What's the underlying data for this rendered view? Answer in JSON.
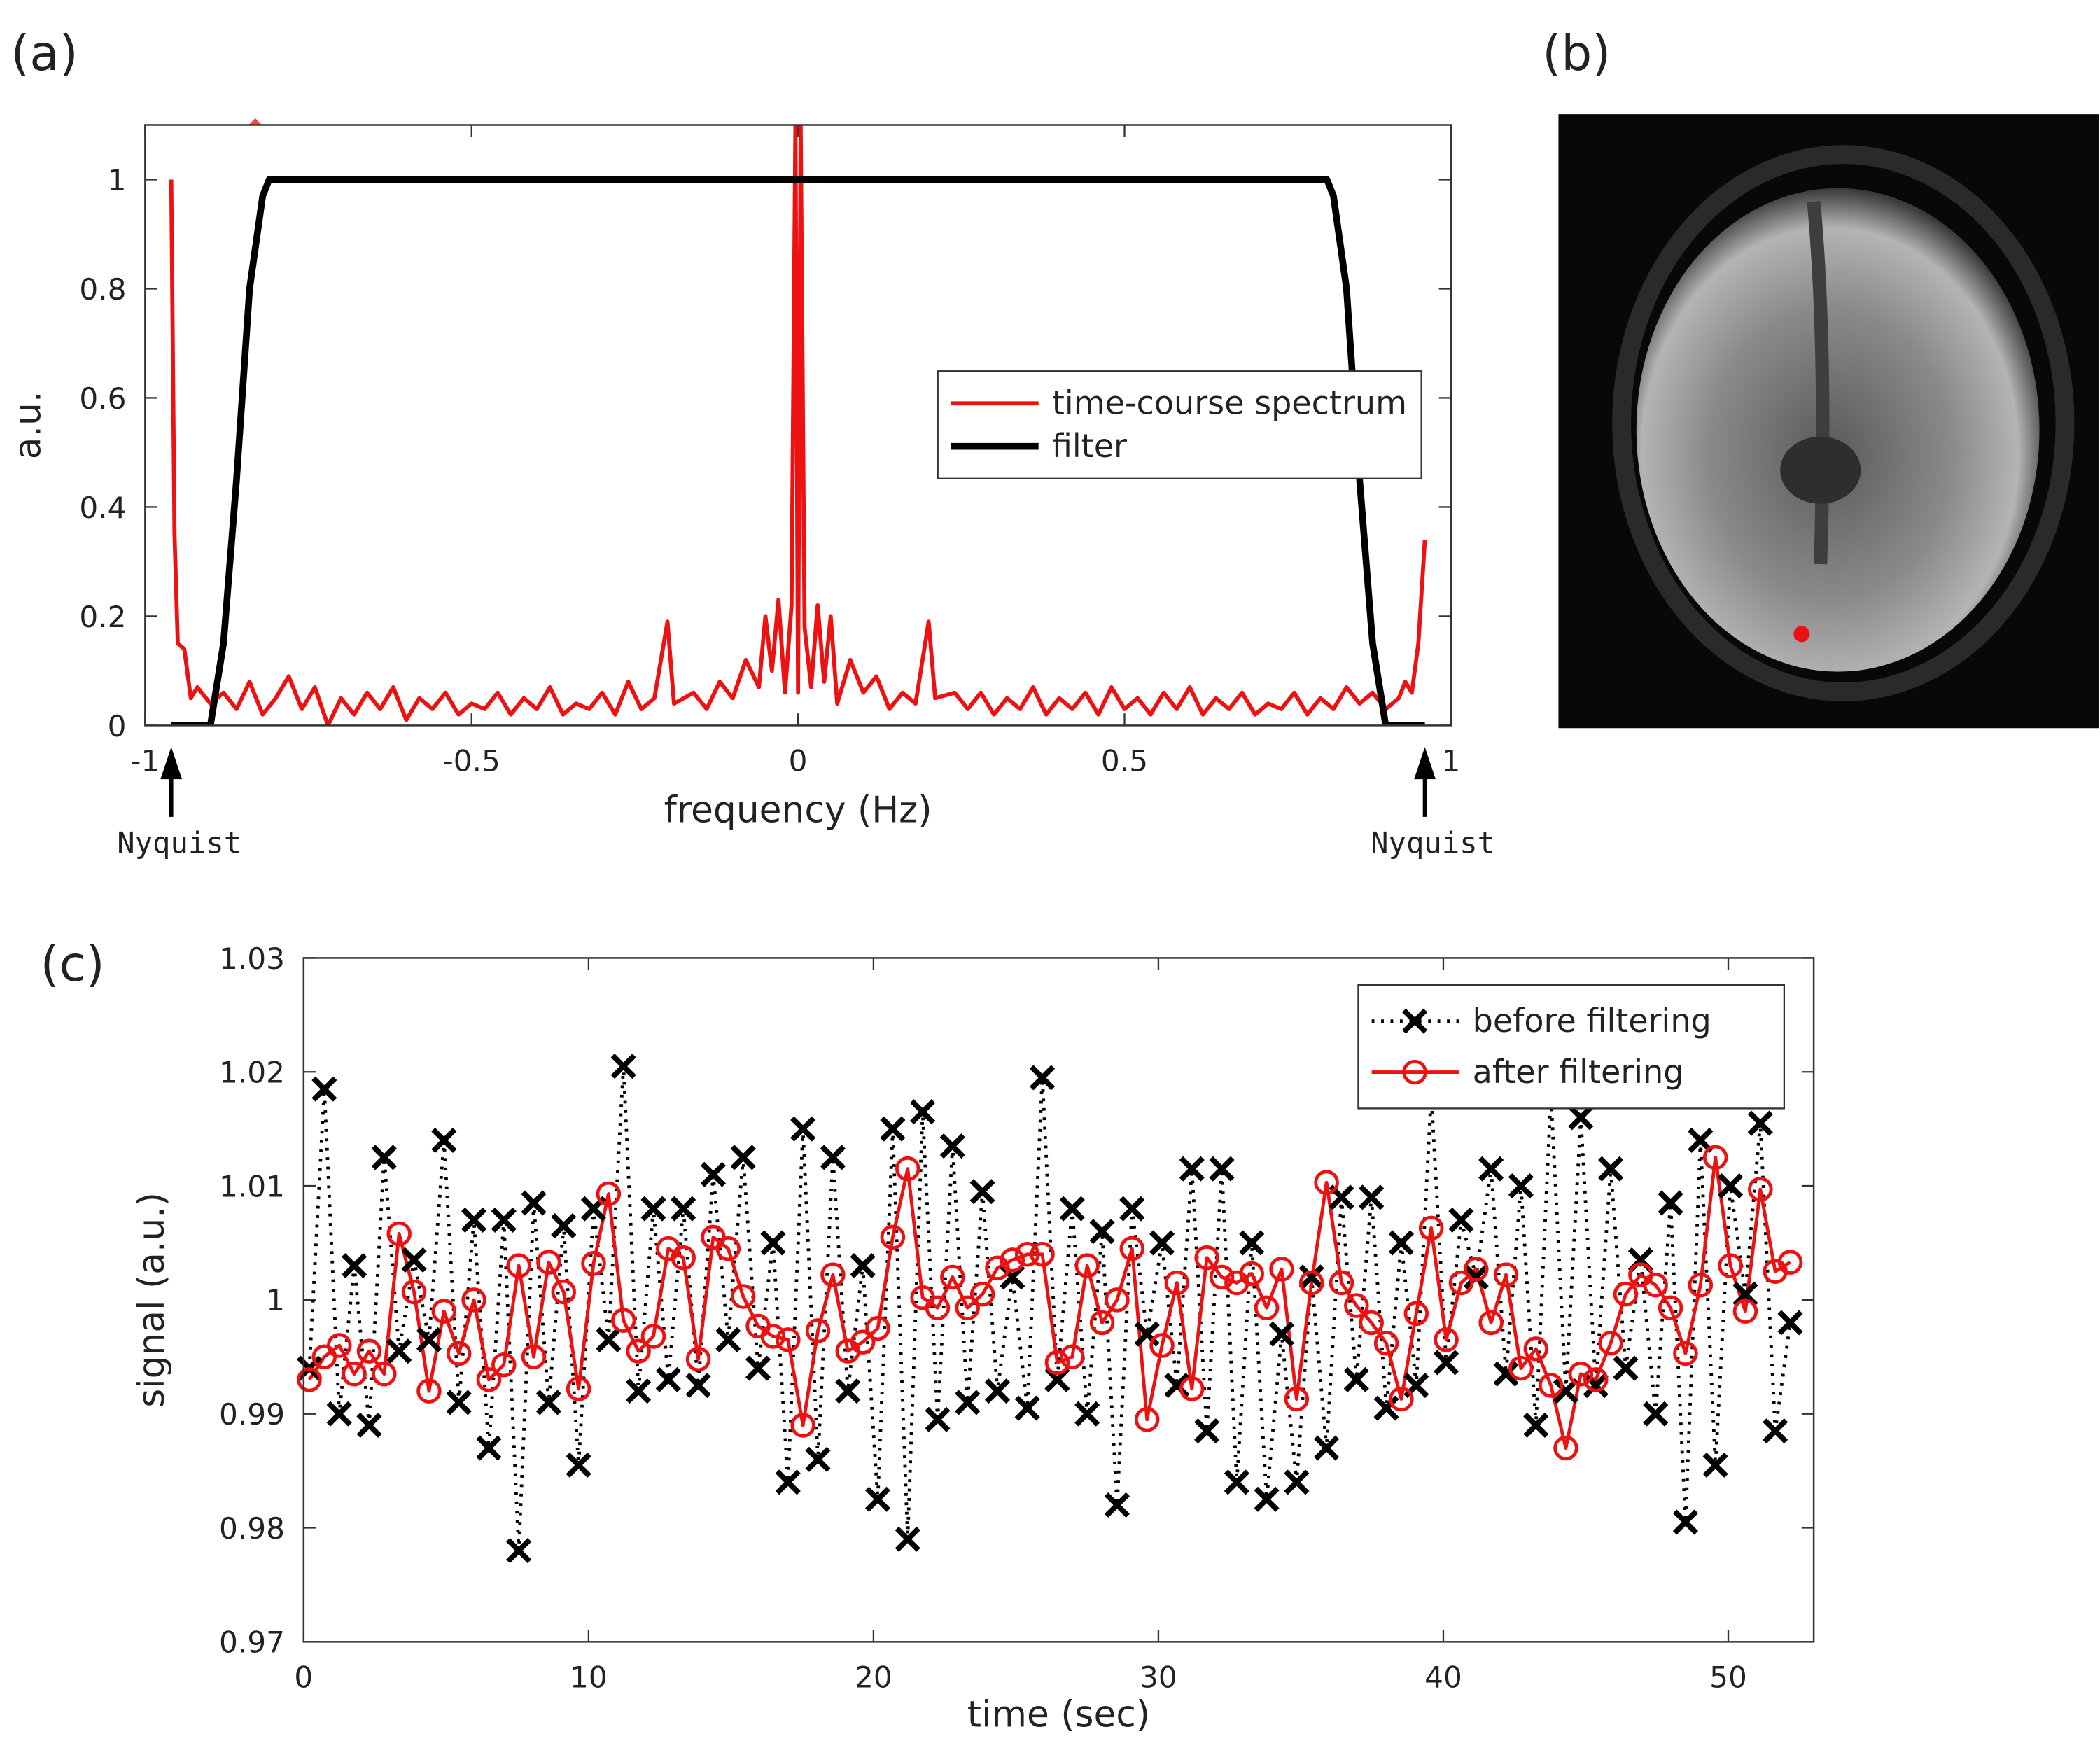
{
  "chart_data": [
    {
      "type": "line",
      "label": "(a)",
      "xlabel": "frequency (Hz)",
      "ylabel": "a.u.",
      "xlim": [
        -1,
        1
      ],
      "ylim": [
        0,
        1.1
      ],
      "xticks": [
        -1,
        -0.5,
        0,
        0.5,
        1
      ],
      "yticks": [
        0,
        0.2,
        0.4,
        0.6,
        0.8,
        1
      ],
      "legend": "right",
      "grid": false,
      "annotations": [
        {
          "text": "Nyquist",
          "x": -0.96
        },
        {
          "text": "Nyquist",
          "x": 0.96
        }
      ],
      "series": [
        {
          "name": "time-course spectrum",
          "color": "#ee1111",
          "linestyle": "solid",
          "linewidth": 3,
          "marker": "none",
          "x": [
            -0.96,
            -0.955,
            -0.95,
            -0.94,
            -0.93,
            -0.92,
            -0.9,
            -0.88,
            -0.86,
            -0.84,
            -0.82,
            -0.8,
            -0.78,
            -0.76,
            -0.74,
            -0.72,
            -0.7,
            -0.68,
            -0.66,
            -0.64,
            -0.62,
            -0.6,
            -0.58,
            -0.56,
            -0.54,
            -0.52,
            -0.5,
            -0.48,
            -0.46,
            -0.44,
            -0.42,
            -0.4,
            -0.38,
            -0.36,
            -0.34,
            -0.32,
            -0.3,
            -0.28,
            -0.26,
            -0.24,
            -0.22,
            -0.2,
            -0.19,
            -0.16,
            -0.14,
            -0.12,
            -0.1,
            -0.08,
            -0.06,
            -0.05,
            -0.04,
            -0.03,
            -0.02,
            -0.01,
            -0.004,
            0,
            0.004,
            0.01,
            0.02,
            0.03,
            0.04,
            0.05,
            0.06,
            0.08,
            0.1,
            0.12,
            0.14,
            0.16,
            0.18,
            0.2,
            0.21,
            0.24,
            0.26,
            0.28,
            0.3,
            0.32,
            0.34,
            0.36,
            0.38,
            0.4,
            0.42,
            0.44,
            0.46,
            0.48,
            0.5,
            0.52,
            0.54,
            0.56,
            0.58,
            0.6,
            0.62,
            0.64,
            0.66,
            0.68,
            0.7,
            0.72,
            0.74,
            0.76,
            0.78,
            0.8,
            0.82,
            0.84,
            0.86,
            0.88,
            0.9,
            0.92,
            0.93,
            0.94,
            0.95,
            0.96
          ],
          "values": [
            1.0,
            0.35,
            0.15,
            0.14,
            0.05,
            0.07,
            0.04,
            0.06,
            0.03,
            0.08,
            0.02,
            0.05,
            0.09,
            0.03,
            0.07,
            0.0,
            0.05,
            0.02,
            0.06,
            0.03,
            0.07,
            0.01,
            0.05,
            0.03,
            0.06,
            0.02,
            0.04,
            0.03,
            0.06,
            0.02,
            0.05,
            0.03,
            0.07,
            0.02,
            0.04,
            0.03,
            0.06,
            0.02,
            0.08,
            0.03,
            0.05,
            0.19,
            0.04,
            0.06,
            0.03,
            0.08,
            0.05,
            0.12,
            0.07,
            0.2,
            0.1,
            0.23,
            0.06,
            0.22,
            1.1,
            0.06,
            1.1,
            0.18,
            0.07,
            0.22,
            0.08,
            0.2,
            0.04,
            0.12,
            0.06,
            0.09,
            0.03,
            0.06,
            0.04,
            0.19,
            0.05,
            0.06,
            0.03,
            0.06,
            0.02,
            0.05,
            0.03,
            0.07,
            0.02,
            0.05,
            0.03,
            0.06,
            0.02,
            0.07,
            0.03,
            0.05,
            0.02,
            0.06,
            0.03,
            0.07,
            0.02,
            0.05,
            0.03,
            0.06,
            0.02,
            0.04,
            0.03,
            0.06,
            0.02,
            0.05,
            0.03,
            0.07,
            0.04,
            0.06,
            0.03,
            0.05,
            0.08,
            0.06,
            0.15,
            0.34
          ]
        },
        {
          "name": "filter",
          "color": "#000000",
          "linestyle": "solid",
          "linewidth": 5,
          "marker": "none",
          "x": [
            -0.96,
            -0.9,
            -0.88,
            -0.86,
            -0.84,
            -0.82,
            -0.81,
            0.81,
            0.82,
            0.84,
            0.86,
            0.88,
            0.9,
            0.96
          ],
          "values": [
            0,
            0,
            0.15,
            0.45,
            0.8,
            0.97,
            1,
            1,
            0.97,
            0.8,
            0.45,
            0.15,
            0,
            0
          ]
        }
      ]
    },
    {
      "type": "line",
      "label": "(c)",
      "xlabel": "time (sec)",
      "ylabel": "signal (a.u.)",
      "xlim": [
        0,
        53
      ],
      "ylim": [
        0.97,
        1.03
      ],
      "xticks": [
        0,
        10,
        20,
        30,
        40,
        50
      ],
      "yticks": [
        0.97,
        0.98,
        0.99,
        1,
        1.01,
        1.02,
        1.03
      ],
      "legend": "upper right",
      "grid": false,
      "x": [
        0.2,
        0.725,
        1.25,
        1.775,
        2.3,
        2.825,
        3.35,
        3.875,
        4.4,
        4.925,
        5.45,
        5.975,
        6.5,
        7.025,
        7.55,
        8.075,
        8.6,
        9.125,
        9.65,
        10.175,
        10.7,
        11.225,
        11.75,
        12.275,
        12.8,
        13.325,
        13.85,
        14.375,
        14.9,
        15.425,
        15.95,
        16.475,
        17,
        17.525,
        18.05,
        18.575,
        19.1,
        19.625,
        20.15,
        20.675,
        21.2,
        21.725,
        22.25,
        22.775,
        23.3,
        23.825,
        24.35,
        24.875,
        25.4,
        25.925,
        26.45,
        26.975,
        27.5,
        28.025,
        28.55,
        29.075,
        29.6,
        30.125,
        30.65,
        31.175,
        31.7,
        32.225,
        32.75,
        33.275,
        33.8,
        34.325,
        34.85,
        35.375,
        35.9,
        36.425,
        36.95,
        37.475,
        38,
        38.525,
        39.05,
        39.575,
        40.1,
        40.625,
        41.15,
        41.675,
        42.2,
        42.725,
        43.25,
        43.775,
        44.3,
        44.825,
        45.35,
        45.875,
        46.4,
        46.925,
        47.45,
        47.975,
        48.5,
        49.025,
        49.55,
        50.075,
        50.6,
        51.125,
        51.65,
        52.175
      ],
      "series": [
        {
          "name": "before filtering",
          "color": "#000000",
          "linestyle": "dotted",
          "linewidth": 2.5,
          "marker": "x",
          "values": [
            0.994,
            1.0185,
            0.99,
            1.003,
            0.989,
            1.0125,
            0.9955,
            1.0035,
            0.9965,
            1.014,
            0.991,
            1.007,
            0.987,
            1.007,
            0.978,
            1.0085,
            0.991,
            1.0065,
            0.9855,
            1.008,
            0.9965,
            1.0205,
            0.992,
            1.008,
            0.993,
            1.008,
            0.9925,
            1.011,
            0.9965,
            1.0125,
            0.994,
            1.005,
            0.984,
            1.015,
            0.986,
            1.0125,
            0.992,
            1.003,
            0.9825,
            1.015,
            0.979,
            1.0165,
            0.9895,
            1.0135,
            0.991,
            1.0095,
            0.992,
            1.002,
            0.9905,
            1.0195,
            0.993,
            1.008,
            0.99,
            1.006,
            0.982,
            1.008,
            0.997,
            1.005,
            0.9925,
            1.0115,
            0.9885,
            1.0115,
            0.984,
            1.005,
            0.9825,
            0.997,
            0.984,
            1.002,
            0.987,
            1.009,
            0.993,
            1.009,
            0.9905,
            1.005,
            0.9925,
            1.018,
            0.9945,
            1.007,
            1.002,
            1.0115,
            0.9935,
            1.01,
            0.989,
            1.018,
            0.992,
            1.016,
            0.9925,
            1.0115,
            0.994,
            1.0035,
            0.99,
            1.0085,
            0.9805,
            1.014,
            0.9855,
            1.01,
            1.0005,
            1.0155,
            0.9885,
            0.998
          ]
        },
        {
          "name": "after filtering",
          "color": "#ee1111",
          "linestyle": "solid",
          "linewidth": 2.5,
          "marker": "o",
          "values": [
            0.993,
            0.995,
            0.996,
            0.9935,
            0.9955,
            0.9935,
            1.0058,
            1.0007,
            0.992,
            0.999,
            0.9953,
            1.0,
            0.993,
            0.9943,
            1.003,
            0.995,
            1.0033,
            1.0007,
            0.9922,
            1.0032,
            1.0093,
            0.9982,
            0.9955,
            0.9968,
            1.0045,
            1.0037,
            0.9948,
            1.0055,
            1.0045,
            1.0003,
            0.9977,
            0.9968,
            0.9965,
            0.989,
            0.9973,
            1.0022,
            0.9955,
            0.9963,
            0.9975,
            1.0055,
            1.0115,
            1.0002,
            0.9993,
            1.002,
            0.9993,
            1.0005,
            1.0028,
            1.0035,
            1.004,
            1.004,
            0.9945,
            0.995,
            1.003,
            0.998,
            1.0,
            1.0045,
            0.9895,
            0.996,
            1.0015,
            0.9922,
            1.0037,
            1.002,
            1.0015,
            1.0023,
            0.9993,
            1.0027,
            0.9913,
            1.0015,
            1.0103,
            1.0015,
            0.9995,
            0.998,
            0.9962,
            0.9913,
            0.9988,
            1.0063,
            0.9965,
            1.0015,
            1.0027,
            0.998,
            1.0022,
            0.994,
            0.9957,
            0.9925,
            0.987,
            0.9935,
            0.993,
            0.9962,
            1.0005,
            1.0022,
            1.0013,
            0.9993,
            0.9953,
            1.0013,
            1.0125,
            1.003,
            0.999,
            1.0097,
            1.0025,
            1.0033
          ]
        }
      ]
    }
  ],
  "image": {
    "label": "(b)"
  }
}
